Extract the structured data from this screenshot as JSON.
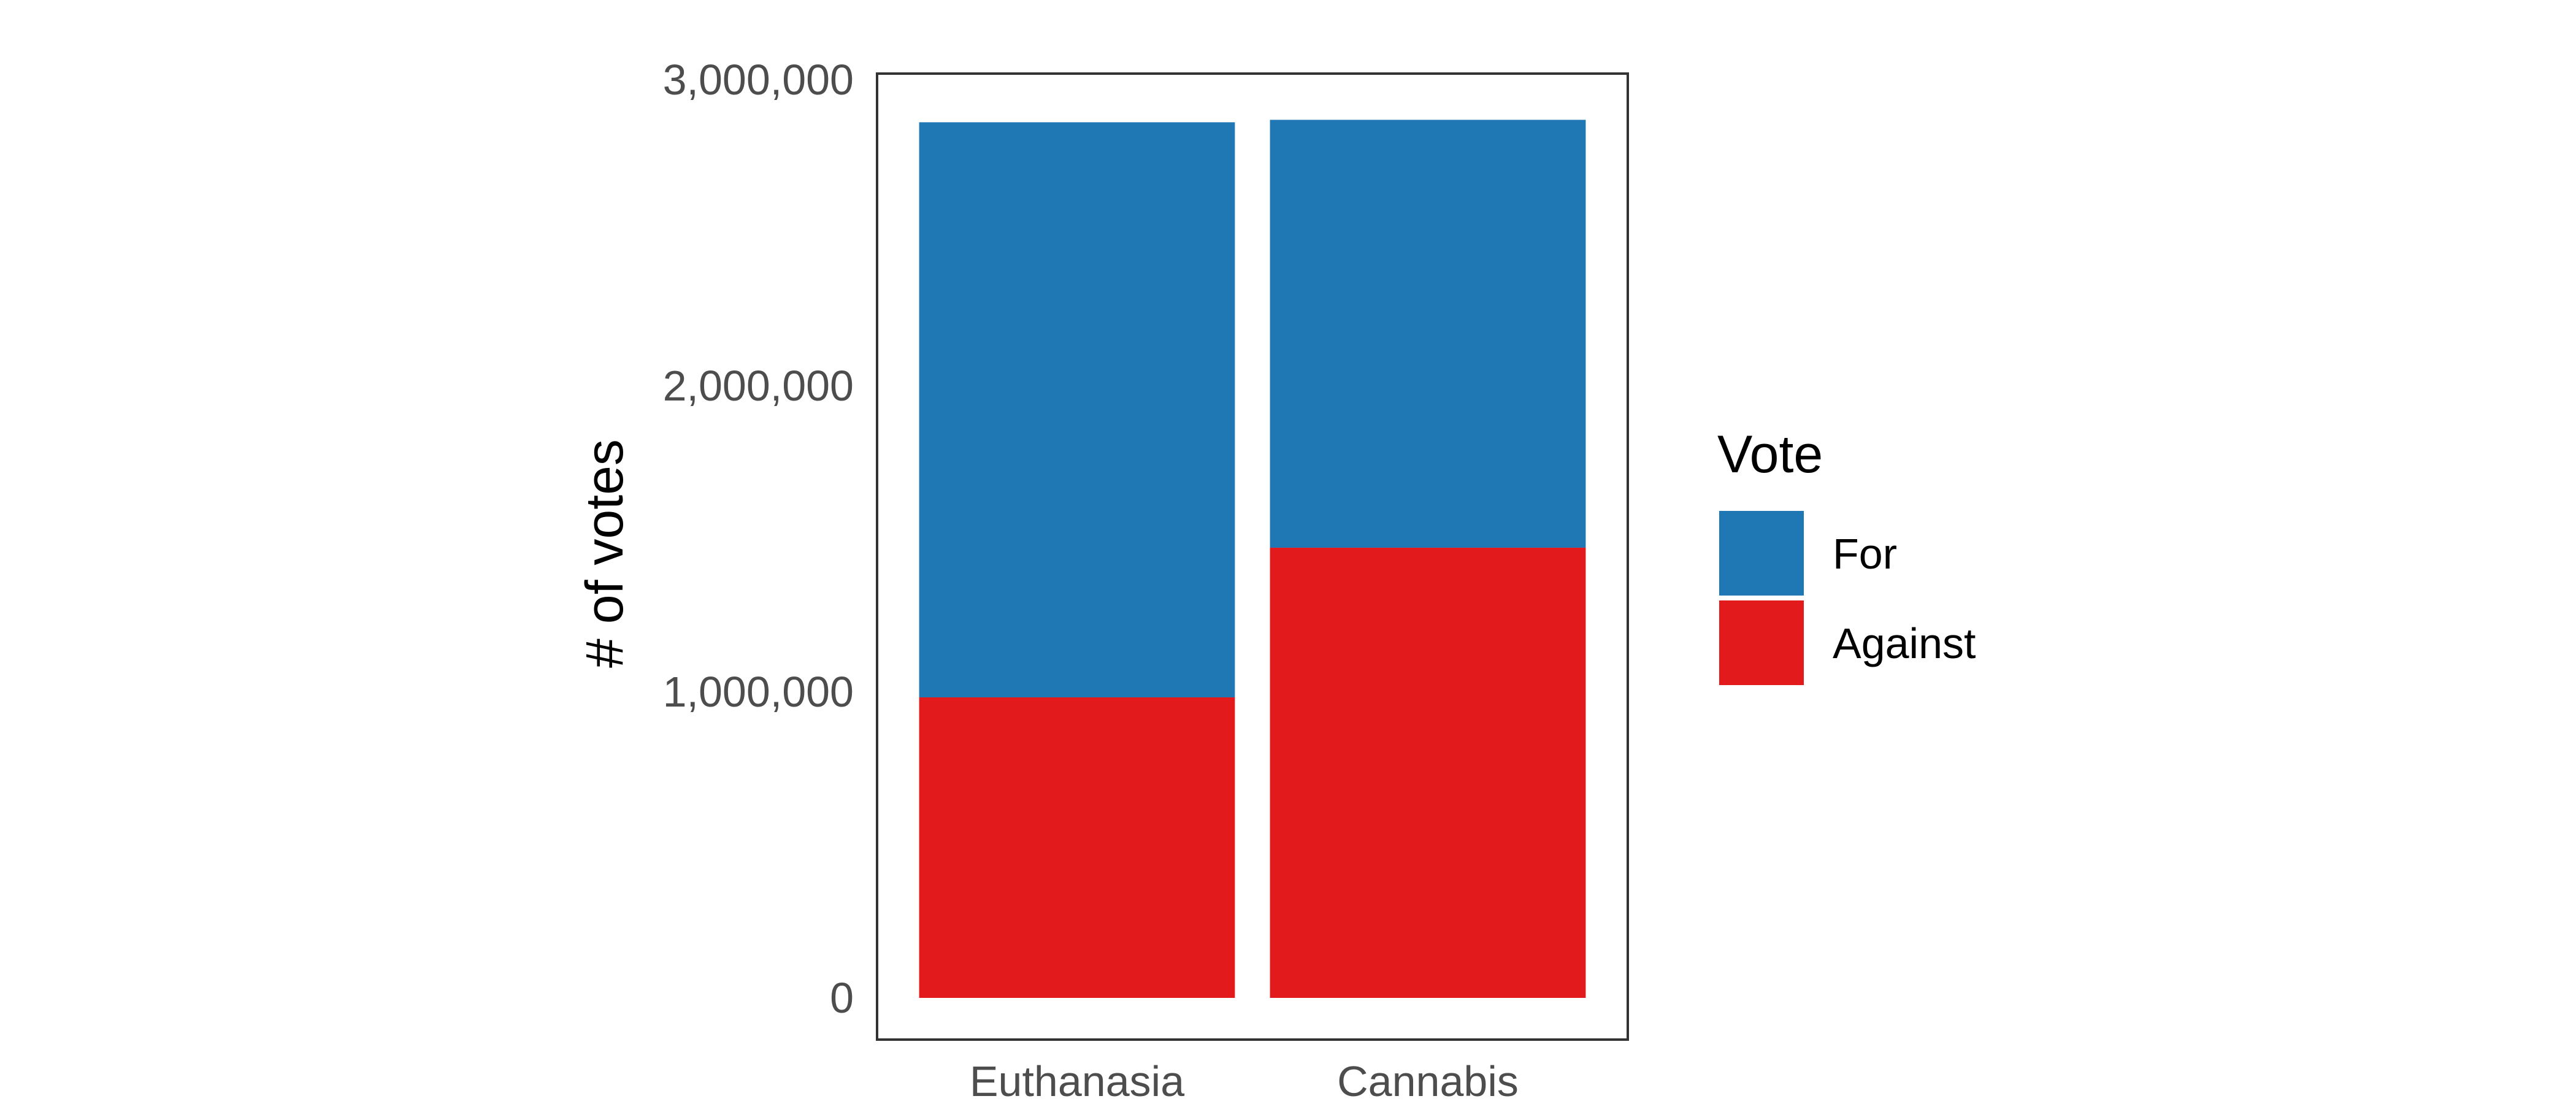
{
  "chart_data": {
    "type": "bar",
    "stacked": true,
    "categories": [
      "Euthanasia",
      "Cannabis"
    ],
    "series": [
      {
        "name": "Against",
        "values": [
          982000,
          1471000
        ],
        "color": "#e31a1c"
      },
      {
        "name": "For",
        "values": [
          1879000,
          1398000
        ],
        "color": "#1f78b4"
      }
    ],
    "xlabel": "",
    "ylabel": "# of votes",
    "ylim": [
      0,
      3000000
    ],
    "yticks": [
      0,
      1000000,
      2000000,
      3000000
    ],
    "ytick_labels": [
      "0",
      "1,000,000",
      "2,000,000",
      "3,000,000"
    ],
    "grid": false,
    "panel_border": true,
    "legend": {
      "title": "Vote",
      "position": "right",
      "items": [
        {
          "label": "For",
          "color": "#1f78b4"
        },
        {
          "label": "Against",
          "color": "#e31a1c"
        }
      ]
    }
  }
}
